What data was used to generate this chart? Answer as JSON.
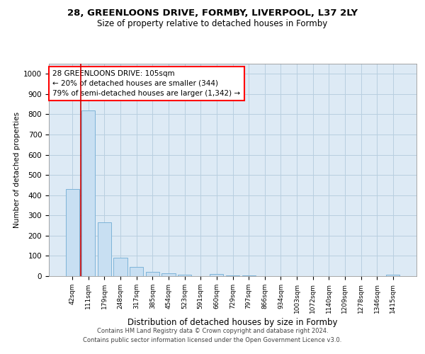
{
  "title_line1": "28, GREENLOONS DRIVE, FORMBY, LIVERPOOL, L37 2LY",
  "title_line2": "Size of property relative to detached houses in Formby",
  "xlabel": "Distribution of detached houses by size in Formby",
  "ylabel": "Number of detached properties",
  "footer_line1": "Contains HM Land Registry data © Crown copyright and database right 2024.",
  "footer_line2": "Contains public sector information licensed under the Open Government Licence v3.0.",
  "categories": [
    "42sqm",
    "111sqm",
    "179sqm",
    "248sqm",
    "317sqm",
    "385sqm",
    "454sqm",
    "523sqm",
    "591sqm",
    "660sqm",
    "729sqm",
    "797sqm",
    "866sqm",
    "934sqm",
    "1003sqm",
    "1072sqm",
    "1140sqm",
    "1209sqm",
    "1278sqm",
    "1346sqm",
    "1415sqm"
  ],
  "values": [
    430,
    820,
    265,
    90,
    47,
    22,
    15,
    7,
    0,
    10,
    3,
    3,
    0,
    0,
    0,
    0,
    0,
    0,
    0,
    0,
    8
  ],
  "bar_color": "#c8dff2",
  "bar_edge_color": "#7db3d8",
  "grid_color": "#b8cfe0",
  "background_color": "#ddeaf5",
  "vline_color": "#cc0000",
  "vline_x": 0.5,
  "annotation_text": "28 GREENLOONS DRIVE: 105sqm\n← 20% of detached houses are smaller (344)\n79% of semi-detached houses are larger (1,342) →",
  "ylim": [
    0,
    1050
  ],
  "yticks": [
    0,
    100,
    200,
    300,
    400,
    500,
    600,
    700,
    800,
    900,
    1000
  ]
}
